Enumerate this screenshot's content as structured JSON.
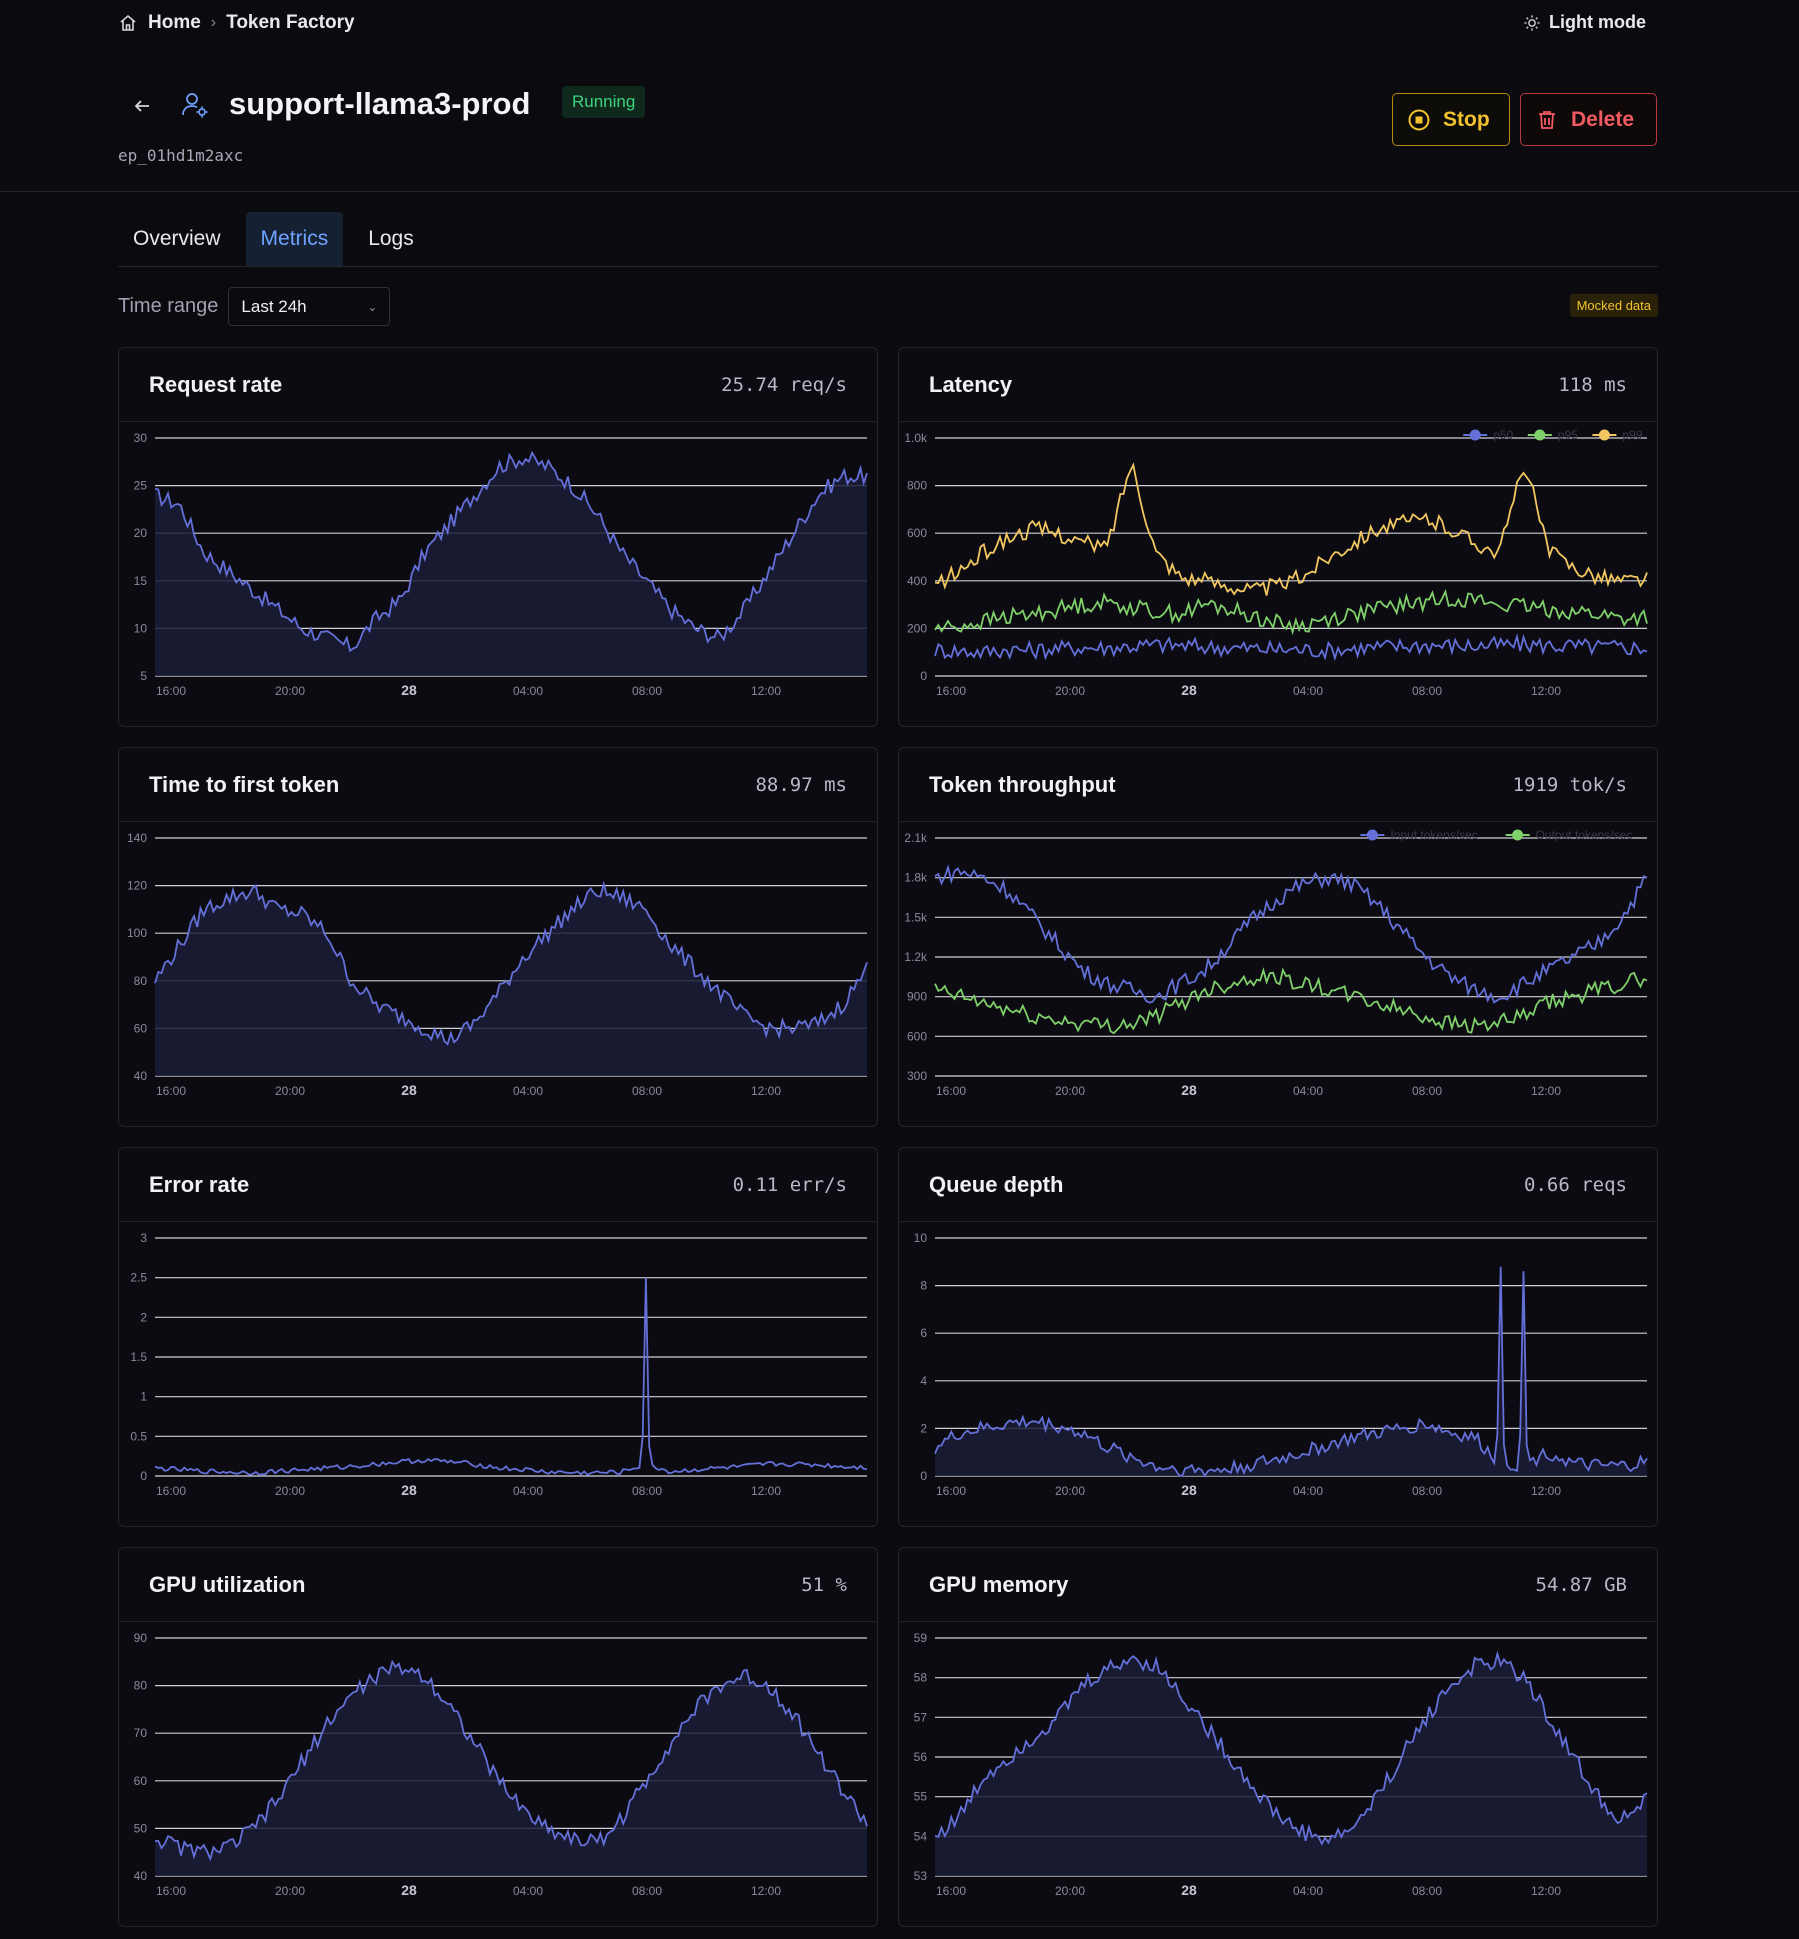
{
  "breadcrumb": {
    "home": "Home",
    "current": "Token Factory"
  },
  "theme_toggle": "Light mode",
  "endpoint": {
    "name": "support-llama3-prod",
    "status": "Running",
    "id": "ep_01hd1m2axc"
  },
  "actions": {
    "stop": "Stop",
    "delete": "Delete"
  },
  "tabs": [
    "Overview",
    "Metrics",
    "Logs"
  ],
  "active_tab": "Metrics",
  "time_range": {
    "label": "Time range",
    "value": "Last 24h"
  },
  "mocked_badge": "Mocked data",
  "colors": {
    "p50": "#6470d8",
    "p95": "#7fcf6a",
    "p99": "#f2c660",
    "input": "#6470d8",
    "output": "#7fcf6a",
    "accent": "#6ea3ff"
  },
  "x_ticks": [
    "16:00",
    "20:00",
    "28",
    "04:00",
    "08:00",
    "12:00"
  ],
  "chart_data": [
    {
      "id": "request_rate",
      "type": "area",
      "title": "Request rate",
      "value": "25.74 req/s",
      "yticks": [
        "30",
        "25",
        "20",
        "15",
        "10",
        "5"
      ],
      "ylim": [
        5,
        30
      ],
      "series": [
        {
          "values": [
            24,
            23,
            18,
            16,
            14,
            12,
            10,
            9,
            8,
            11,
            13,
            18,
            21,
            24,
            27,
            28,
            27,
            25,
            22,
            18,
            15,
            12,
            10,
            9,
            12,
            16,
            20,
            24,
            26,
            26
          ]
        }
      ]
    },
    {
      "id": "latency",
      "type": "line",
      "title": "Latency",
      "value": "118 ms",
      "yticks": [
        "1.0k",
        "800",
        "600",
        "400",
        "200",
        "0"
      ],
      "ylim": [
        0,
        1000
      ],
      "legend": [
        "p50",
        "p95",
        "p99"
      ],
      "series": [
        {
          "name": "p50",
          "values": [
            110,
            105,
            100,
            112,
            108,
            115,
            120,
            118,
            125,
            130,
            128,
            122,
            118,
            115,
            112,
            110,
            108,
            115,
            120,
            125,
            130,
            128,
            126,
            130,
            132,
            128,
            125,
            122,
            120,
            118
          ]
        },
        {
          "name": "p95",
          "values": [
            200,
            210,
            230,
            250,
            260,
            280,
            300,
            310,
            290,
            270,
            260,
            300,
            280,
            250,
            220,
            210,
            240,
            260,
            280,
            300,
            310,
            330,
            320,
            300,
            290,
            280,
            270,
            260,
            240,
            250
          ]
        },
        {
          "name": "p99",
          "values": [
            380,
            440,
            520,
            580,
            620,
            600,
            560,
            540,
            900,
            520,
            420,
            400,
            380,
            360,
            380,
            420,
            500,
            560,
            620,
            640,
            660,
            620,
            560,
            520,
            900,
            520,
            460,
            420,
            400,
            410
          ]
        }
      ]
    },
    {
      "id": "ttft",
      "type": "area",
      "title": "Time to first token",
      "value": "88.97 ms",
      "yticks": [
        "140",
        "120",
        "100",
        "80",
        "60",
        "40"
      ],
      "ylim": [
        40,
        140
      ],
      "series": [
        {
          "values": [
            80,
            95,
            110,
            115,
            118,
            110,
            108,
            100,
            80,
            70,
            65,
            60,
            55,
            62,
            75,
            90,
            100,
            110,
            118,
            115,
            110,
            95,
            85,
            75,
            65,
            60,
            60,
            62,
            70,
            85
          ]
        }
      ]
    },
    {
      "id": "token_throughput",
      "type": "line",
      "title": "Token throughput",
      "value": "1919 tok/s",
      "yticks": [
        "2.1k",
        "1.8k",
        "1.5k",
        "1.2k",
        "900",
        "600",
        "300"
      ],
      "ylim": [
        300,
        2100
      ],
      "legend": [
        "Input tokens/sec",
        "Output tokens/sec"
      ],
      "series": [
        {
          "name": "Input tokens/sec",
          "values": [
            1800,
            1850,
            1800,
            1700,
            1500,
            1300,
            1100,
            1000,
            950,
            900,
            1000,
            1100,
            1300,
            1500,
            1650,
            1750,
            1800,
            1750,
            1600,
            1400,
            1200,
            1050,
            950,
            900,
            1000,
            1100,
            1200,
            1300,
            1500,
            1800
          ]
        },
        {
          "name": "Output tokens/sec",
          "values": [
            950,
            900,
            850,
            800,
            750,
            720,
            700,
            680,
            700,
            750,
            850,
            950,
            1000,
            1050,
            1050,
            1000,
            950,
            900,
            850,
            800,
            750,
            700,
            680,
            700,
            750,
            850,
            900,
            950,
            1000,
            1050
          ]
        }
      ]
    },
    {
      "id": "error_rate",
      "type": "line",
      "title": "Error rate",
      "value": "0.11 err/s",
      "yticks": [
        "3",
        "2.5",
        "2",
        "1.5",
        "1",
        "0.5",
        "0"
      ],
      "ylim": [
        0,
        3
      ],
      "series": [
        {
          "values": [
            0.1,
            0.08,
            0.06,
            0.05,
            0.04,
            0.06,
            0.08,
            0.1,
            0.12,
            0.15,
            0.18,
            0.2,
            0.18,
            0.15,
            0.1,
            0.08,
            0.05,
            0.04,
            0.04,
            0.05,
            2.5,
            0.05,
            0.08,
            0.1,
            0.12,
            0.15,
            0.15,
            0.14,
            0.12,
            0.11
          ]
        }
      ]
    },
    {
      "id": "queue_depth",
      "type": "area",
      "title": "Queue depth",
      "value": "0.66 reqs",
      "yticks": [
        "10",
        "8",
        "6",
        "4",
        "2",
        "0"
      ],
      "ylim": [
        0,
        10
      ],
      "series": [
        {
          "values": [
            1.2,
            1.8,
            2.0,
            2.2,
            2.3,
            2.1,
            1.8,
            1.2,
            0.8,
            0.4,
            0.3,
            0.2,
            0.3,
            0.5,
            0.7,
            1.0,
            1.3,
            1.6,
            1.8,
            2.0,
            2.2,
            1.8,
            1.6,
            8.8,
            8.6,
            1.0,
            0.5,
            0.4,
            0.4,
            0.6
          ]
        }
      ]
    },
    {
      "id": "gpu_util",
      "type": "area",
      "title": "GPU utilization",
      "value": "51 %",
      "yticks": [
        "90",
        "80",
        "70",
        "60",
        "50",
        "40"
      ],
      "ylim": [
        40,
        90
      ],
      "series": [
        {
          "values": [
            48,
            46,
            45,
            46,
            50,
            56,
            64,
            72,
            78,
            82,
            84,
            82,
            76,
            68,
            60,
            54,
            50,
            48,
            47,
            52,
            60,
            68,
            75,
            80,
            82,
            80,
            74,
            66,
            58,
            51
          ]
        }
      ]
    },
    {
      "id": "gpu_memory",
      "type": "area",
      "title": "GPU memory",
      "value": "54.87 GB",
      "yticks": [
        "59",
        "58",
        "57",
        "56",
        "55",
        "54",
        "53"
      ],
      "ylim": [
        53,
        59
      ],
      "series": [
        {
          "values": [
            54,
            54.5,
            55.5,
            56,
            56.5,
            57,
            57.8,
            58.2,
            58.5,
            58.3,
            57.6,
            56.8,
            56,
            55.2,
            54.5,
            54.1,
            53.9,
            54.2,
            55,
            56,
            57,
            57.8,
            58.3,
            58.4,
            58,
            57,
            56,
            55,
            54.4,
            54.9
          ]
        }
      ]
    }
  ]
}
